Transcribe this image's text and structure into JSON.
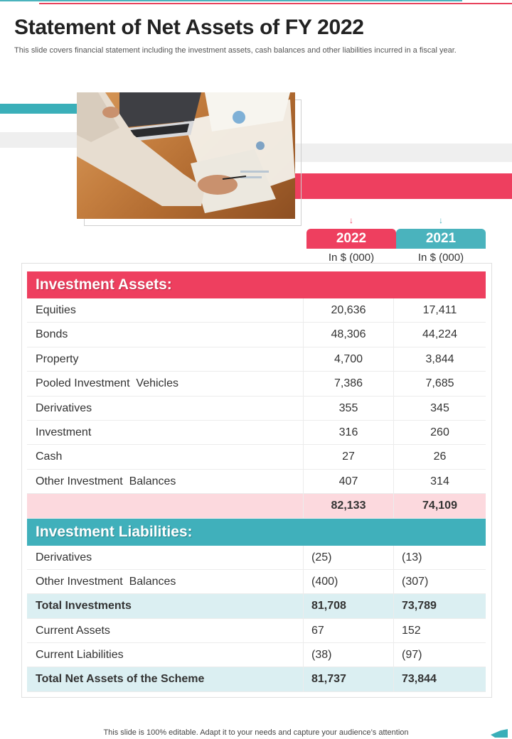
{
  "header": {
    "title": "Statement of Net Assets of FY 2022",
    "subtitle": "This slide covers financial statement including the investment assets, cash balances and other liabilities incurred in a fiscal year."
  },
  "columns": {
    "y2022": "2022",
    "y2021": "2021",
    "unit_2022": "In $ (000)",
    "unit_2021": "In $ (000)"
  },
  "investment_assets": {
    "heading": "Investment Assets:",
    "rows": [
      {
        "label": "Equities",
        "v2022": "20,636",
        "v2021": "17,411"
      },
      {
        "label": "Bonds",
        "v2022": "48,306",
        "v2021": "44,224"
      },
      {
        "label": "Property",
        "v2022": "4,700",
        "v2021": "3,844"
      },
      {
        "label": "Pooled Investment  Vehicles",
        "v2022": "7,386",
        "v2021": "7,685"
      },
      {
        "label": "Derivatives",
        "v2022": "355",
        "v2021": "345"
      },
      {
        "label": "Investment",
        "v2022": "316",
        "v2021": "260"
      },
      {
        "label": "Cash",
        "v2022": "27",
        "v2021": "26"
      },
      {
        "label": "Other Investment  Balances",
        "v2022": "407",
        "v2021": "314"
      }
    ],
    "total": {
      "label": "",
      "v2022": "82,133",
      "v2021": "74,109"
    }
  },
  "investment_liabilities": {
    "heading": "Investment Liabilities:",
    "rows": [
      {
        "label": "Derivatives",
        "v2022": "(25)",
        "v2021": "(13)"
      },
      {
        "label": "Other Investment  Balances",
        "v2022": "(400)",
        "v2021": "(307)"
      }
    ],
    "total_investments": {
      "label": "Total Investments",
      "v2022": "81,708",
      "v2021": "73,789"
    },
    "current": [
      {
        "label": "Current Assets",
        "v2022": "67",
        "v2021": "152"
      },
      {
        "label": "Current Liabilities",
        "v2022": "(38)",
        "v2021": "(97)"
      }
    ],
    "total_net": {
      "label": "Total Net Assets of the Scheme",
      "v2022": "81,737",
      "v2021": "73,844"
    }
  },
  "footer": {
    "note": "This slide is 100% editable. Adapt it to your needs and capture your audience’s attention"
  },
  "colors": {
    "red": "#ee3f5f",
    "teal": "#40b0bb",
    "pink_row": "#fcd9de",
    "blue_row": "#dbeff2"
  }
}
